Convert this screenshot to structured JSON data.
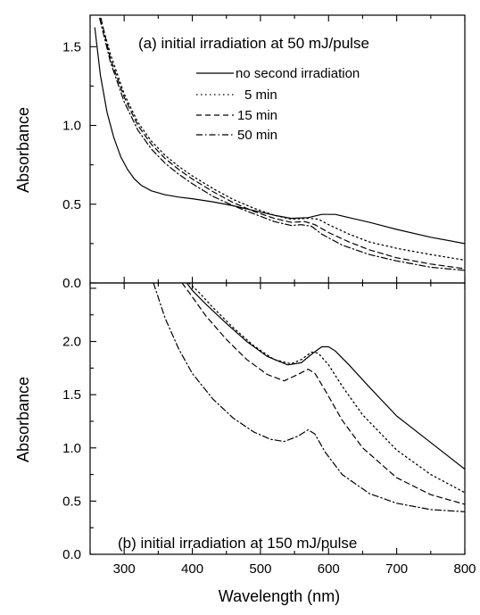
{
  "chart_data": [
    {
      "type": "line",
      "title": "(a) initial irradiation at 50 mJ/pulse",
      "xlabel": "",
      "ylabel": "Absorbance",
      "xlim": [
        250,
        800
      ],
      "ylim": [
        0.0,
        1.7
      ],
      "yticks": [
        0.0,
        0.5,
        1.0,
        1.5
      ],
      "ytick_labels": [
        "0.0",
        "0.5",
        "1.0",
        "1.5"
      ],
      "legend_position": "top-right",
      "series": [
        {
          "name": "no second irradiation",
          "dash": "solid",
          "x": [
            257,
            265,
            275,
            285,
            295,
            305,
            315,
            325,
            340,
            360,
            380,
            400,
            430,
            460,
            490,
            520,
            545,
            570,
            590,
            610,
            630,
            660,
            700,
            750,
            800
          ],
          "y": [
            1.62,
            1.32,
            1.08,
            0.92,
            0.8,
            0.72,
            0.66,
            0.62,
            0.585,
            0.56,
            0.545,
            0.535,
            0.515,
            0.49,
            0.46,
            0.43,
            0.41,
            0.415,
            0.435,
            0.435,
            0.415,
            0.385,
            0.34,
            0.29,
            0.25
          ]
        },
        {
          "name": "5 min",
          "dash": "dotted",
          "x": [
            265,
            280,
            300,
            320,
            340,
            360,
            380,
            400,
            430,
            460,
            490,
            520,
            545,
            570,
            585,
            600,
            630,
            660,
            700,
            750,
            800
          ],
          "y": [
            1.68,
            1.45,
            1.2,
            1.02,
            0.9,
            0.81,
            0.74,
            0.68,
            0.6,
            0.53,
            0.475,
            0.43,
            0.405,
            0.41,
            0.405,
            0.37,
            0.31,
            0.26,
            0.22,
            0.18,
            0.145
          ]
        },
        {
          "name": "15 min",
          "dash": "dashed",
          "x": [
            266,
            280,
            300,
            320,
            340,
            360,
            380,
            400,
            430,
            460,
            490,
            520,
            545,
            565,
            580,
            600,
            630,
            660,
            700,
            750,
            800
          ],
          "y": [
            1.68,
            1.42,
            1.18,
            1.0,
            0.88,
            0.79,
            0.72,
            0.66,
            0.58,
            0.51,
            0.455,
            0.41,
            0.385,
            0.39,
            0.37,
            0.32,
            0.26,
            0.21,
            0.16,
            0.12,
            0.09
          ]
        },
        {
          "name": "50 min",
          "dash": "dashdot",
          "x": [
            264,
            280,
            300,
            320,
            340,
            360,
            380,
            400,
            430,
            460,
            490,
            520,
            545,
            560,
            575,
            590,
            620,
            660,
            700,
            750,
            800
          ],
          "y": [
            1.68,
            1.4,
            1.15,
            0.97,
            0.85,
            0.76,
            0.69,
            0.63,
            0.55,
            0.49,
            0.44,
            0.39,
            0.365,
            0.37,
            0.36,
            0.31,
            0.24,
            0.18,
            0.14,
            0.1,
            0.08
          ]
        }
      ]
    },
    {
      "type": "line",
      "title": "(b) initial irradiation at 150 mJ/pulse",
      "xlabel": "Wavelength (nm)",
      "ylabel": "Absorbance",
      "xlim": [
        250,
        800
      ],
      "ylim": [
        0.0,
        2.55
      ],
      "yticks": [
        0.0,
        0.5,
        1.0,
        1.5,
        2.0
      ],
      "ytick_labels": [
        "0.0",
        "0.5",
        "1.0",
        "1.5",
        "2.0"
      ],
      "xticks": [
        300,
        400,
        500,
        600,
        700,
        800
      ],
      "xtick_labels": [
        "300",
        "400",
        "500",
        "600",
        "700",
        "800"
      ],
      "series": [
        {
          "name": "no second irradiation",
          "dash": "solid",
          "x": [
            392,
            400,
            420,
            450,
            480,
            510,
            540,
            560,
            575,
            590,
            600,
            610,
            630,
            660,
            700,
            750,
            800
          ],
          "y": [
            2.55,
            2.48,
            2.35,
            2.17,
            2.0,
            1.86,
            1.78,
            1.8,
            1.88,
            1.95,
            1.95,
            1.91,
            1.78,
            1.57,
            1.3,
            1.05,
            0.8
          ]
        },
        {
          "name": "5 min",
          "dash": "dotted",
          "x": [
            395,
            410,
            430,
            460,
            490,
            520,
            545,
            560,
            575,
            585,
            600,
            620,
            650,
            700,
            750,
            800
          ],
          "y": [
            2.55,
            2.46,
            2.32,
            2.13,
            1.96,
            1.83,
            1.79,
            1.83,
            1.9,
            1.89,
            1.78,
            1.58,
            1.31,
            0.98,
            0.75,
            0.58
          ]
        },
        {
          "name": "15 min",
          "dash": "dashed",
          "x": [
            385,
            400,
            420,
            450,
            480,
            510,
            535,
            555,
            570,
            580,
            595,
            620,
            650,
            700,
            750,
            800
          ],
          "y": [
            2.55,
            2.42,
            2.24,
            2.02,
            1.83,
            1.69,
            1.63,
            1.69,
            1.74,
            1.7,
            1.54,
            1.26,
            1.0,
            0.72,
            0.56,
            0.47
          ]
        },
        {
          "name": "50 min",
          "dash": "dashdot",
          "x": [
            343,
            360,
            380,
            400,
            430,
            460,
            490,
            515,
            535,
            555,
            570,
            580,
            595,
            620,
            660,
            700,
            750,
            800
          ],
          "y": [
            2.55,
            2.22,
            1.93,
            1.7,
            1.46,
            1.28,
            1.15,
            1.08,
            1.06,
            1.11,
            1.17,
            1.13,
            0.96,
            0.75,
            0.57,
            0.48,
            0.42,
            0.4
          ]
        }
      ]
    }
  ]
}
